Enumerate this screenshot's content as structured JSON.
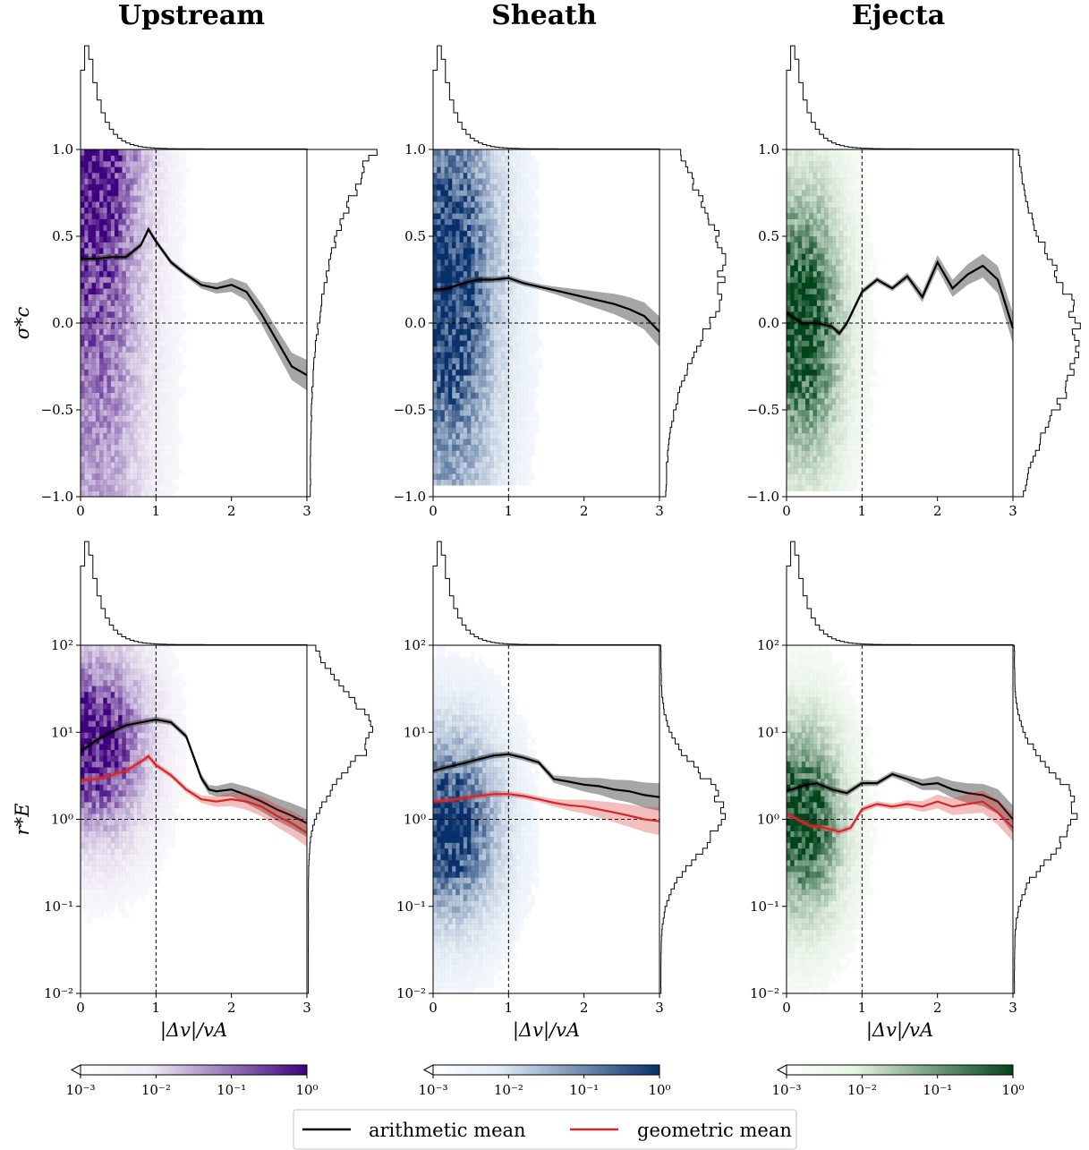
{
  "figure": {
    "columns": [
      "Upstream",
      "Sheath",
      "Ejecta"
    ],
    "colormaps": {
      "Upstream": {
        "light": "#efedf5",
        "dark": "#3f007d"
      },
      "Sheath": {
        "light": "#deebf7",
        "dark": "#08306b"
      },
      "Ejecta": {
        "light": "#e5f5e0",
        "dark": "#00441b"
      }
    },
    "rows": [
      {
        "id": "sigma",
        "ylabel": "σ*c"
      },
      {
        "id": "rE",
        "ylabel": "r*E"
      }
    ],
    "xlabel": "|Δv|/vA",
    "colorbar_ticks": [
      "10⁻³",
      "10⁻²",
      "10⁻¹",
      "10⁰"
    ],
    "legend": [
      {
        "label": "arithmetic mean",
        "color": "#000000"
      },
      {
        "label": "geometric mean",
        "color": "#d62728"
      }
    ]
  },
  "chart_data": [
    {
      "type": "heatmap",
      "panel": "Upstream",
      "ylabel": "σ*c",
      "xlabel": "",
      "xlim": [
        0,
        3
      ],
      "ylim": [
        -1,
        1
      ],
      "xticks": [
        "0",
        "1",
        "2",
        "3"
      ],
      "yticks": [
        "−1.0",
        "−0.5",
        "0.0",
        "0.5",
        "1.0"
      ],
      "reference_lines": {
        "x": 1,
        "y": 0
      },
      "series": [
        {
          "name": "arithmetic mean",
          "x": [
            0,
            0.2,
            0.4,
            0.6,
            0.8,
            0.9,
            1.0,
            1.2,
            1.4,
            1.6,
            1.8,
            2.0,
            2.2,
            2.4,
            2.6,
            2.8,
            3.0
          ],
          "values": [
            0.37,
            0.37,
            0.38,
            0.38,
            0.45,
            0.54,
            0.47,
            0.35,
            0.28,
            0.22,
            0.2,
            0.22,
            0.18,
            0.05,
            -0.1,
            -0.25,
            -0.3
          ]
        }
      ]
    },
    {
      "type": "heatmap",
      "panel": "Sheath",
      "ylabel": "",
      "xlabel": "",
      "xlim": [
        0,
        3
      ],
      "ylim": [
        -1,
        1
      ],
      "xticks": [
        "0",
        "1",
        "2",
        "3"
      ],
      "yticks": [
        "−1.0",
        "−0.5",
        "0.0",
        "0.5",
        "1.0"
      ],
      "reference_lines": {
        "x": 1,
        "y": 0
      },
      "series": [
        {
          "name": "arithmetic mean",
          "x": [
            0,
            0.2,
            0.4,
            0.6,
            0.8,
            1.0,
            1.2,
            1.4,
            1.6,
            1.8,
            2.0,
            2.2,
            2.4,
            2.6,
            2.8,
            3.0
          ],
          "values": [
            0.19,
            0.2,
            0.23,
            0.25,
            0.25,
            0.26,
            0.23,
            0.21,
            0.19,
            0.17,
            0.15,
            0.13,
            0.11,
            0.08,
            0.04,
            -0.05
          ]
        }
      ]
    },
    {
      "type": "heatmap",
      "panel": "Ejecta",
      "ylabel": "",
      "xlabel": "",
      "xlim": [
        0,
        3
      ],
      "ylim": [
        -1,
        1
      ],
      "xticks": [
        "0",
        "1",
        "2",
        "3"
      ],
      "yticks": [
        "−1.0",
        "−0.5",
        "0.0",
        "0.5",
        "1.0"
      ],
      "reference_lines": {
        "x": 1,
        "y": 0
      },
      "series": [
        {
          "name": "arithmetic mean",
          "x": [
            0,
            0.2,
            0.4,
            0.6,
            0.7,
            0.8,
            1.0,
            1.2,
            1.4,
            1.6,
            1.8,
            2.0,
            2.2,
            2.4,
            2.6,
            2.8,
            3.0
          ],
          "values": [
            0.06,
            0.0,
            0.0,
            -0.02,
            -0.06,
            0.0,
            0.18,
            0.25,
            0.2,
            0.27,
            0.15,
            0.35,
            0.2,
            0.28,
            0.33,
            0.25,
            -0.03
          ]
        }
      ]
    },
    {
      "type": "heatmap",
      "panel": "Upstream",
      "ylabel": "r*E",
      "xlabel": "|Δv|/vA",
      "xlim": [
        0,
        3
      ],
      "ylim": [
        0.01,
        100
      ],
      "yscale": "log",
      "xticks": [
        "0",
        "1",
        "2",
        "3"
      ],
      "yticks": [
        "10⁻²",
        "10⁻¹",
        "10⁰",
        "10¹",
        "10²"
      ],
      "reference_lines": {
        "x": 1,
        "y": 1
      },
      "series": [
        {
          "name": "arithmetic mean",
          "x": [
            0,
            0.2,
            0.4,
            0.6,
            0.8,
            1.0,
            1.2,
            1.4,
            1.6,
            1.7,
            1.8,
            2.0,
            2.2,
            2.4,
            2.6,
            2.8,
            3.0
          ],
          "values": [
            6.0,
            8.0,
            10.0,
            12.0,
            13.0,
            14.0,
            13.0,
            9.0,
            3.0,
            2.2,
            2.1,
            2.2,
            1.9,
            1.6,
            1.3,
            1.1,
            0.9
          ]
        },
        {
          "name": "geometric mean",
          "x": [
            0,
            0.2,
            0.4,
            0.6,
            0.8,
            0.9,
            1.0,
            1.2,
            1.4,
            1.6,
            1.8,
            2.0,
            2.2,
            2.4,
            2.6,
            2.8,
            3.0
          ],
          "values": [
            2.8,
            2.9,
            3.2,
            3.6,
            4.6,
            5.3,
            4.2,
            3.2,
            2.2,
            1.7,
            1.6,
            1.7,
            1.6,
            1.4,
            1.1,
            0.9,
            0.7
          ]
        }
      ]
    },
    {
      "type": "heatmap",
      "panel": "Sheath",
      "ylabel": "",
      "xlabel": "|Δv|/vA",
      "xlim": [
        0,
        3
      ],
      "ylim": [
        0.01,
        100
      ],
      "yscale": "log",
      "xticks": [
        "0",
        "1",
        "2",
        "3"
      ],
      "yticks": [
        "10⁻²",
        "10⁻¹",
        "10⁰",
        "10¹",
        "10²"
      ],
      "reference_lines": {
        "x": 1,
        "y": 1
      },
      "series": [
        {
          "name": "arithmetic mean",
          "x": [
            0,
            0.2,
            0.4,
            0.6,
            0.8,
            1.0,
            1.2,
            1.4,
            1.6,
            1.8,
            2.0,
            2.2,
            2.4,
            2.6,
            2.8,
            3.0
          ],
          "values": [
            3.6,
            4.0,
            4.4,
            4.9,
            5.4,
            5.6,
            5.1,
            4.5,
            2.9,
            2.7,
            2.5,
            2.4,
            2.2,
            2.1,
            1.9,
            1.8
          ]
        },
        {
          "name": "geometric mean",
          "x": [
            0,
            0.2,
            0.4,
            0.6,
            0.8,
            1.0,
            1.2,
            1.4,
            1.6,
            1.8,
            2.0,
            2.2,
            2.4,
            2.6,
            2.8,
            3.0
          ],
          "values": [
            1.6,
            1.65,
            1.75,
            1.85,
            1.95,
            1.95,
            1.85,
            1.7,
            1.55,
            1.45,
            1.4,
            1.3,
            1.2,
            1.1,
            1.0,
            0.95
          ]
        }
      ]
    },
    {
      "type": "heatmap",
      "panel": "Ejecta",
      "ylabel": "",
      "xlabel": "|Δv|/vA",
      "xlim": [
        0,
        3
      ],
      "ylim": [
        0.01,
        100
      ],
      "yscale": "log",
      "xticks": [
        "0",
        "1",
        "2",
        "3"
      ],
      "yticks": [
        "10⁻²",
        "10⁻¹",
        "10⁰",
        "10¹",
        "10²"
      ],
      "reference_lines": {
        "x": 1,
        "y": 1
      },
      "series": [
        {
          "name": "arithmetic mean",
          "x": [
            0,
            0.2,
            0.4,
            0.6,
            0.8,
            1.0,
            1.2,
            1.4,
            1.6,
            1.8,
            2.0,
            2.2,
            2.4,
            2.6,
            2.8,
            3.0
          ],
          "values": [
            2.1,
            2.4,
            2.6,
            2.2,
            2.0,
            2.6,
            2.6,
            3.3,
            2.9,
            2.5,
            2.6,
            2.2,
            2.0,
            1.9,
            1.6,
            1.0
          ]
        },
        {
          "name": "geometric mean",
          "x": [
            0,
            0.2,
            0.3,
            0.5,
            0.7,
            0.85,
            1.0,
            1.2,
            1.4,
            1.6,
            1.8,
            2.0,
            2.2,
            2.4,
            2.6,
            2.8,
            3.0
          ],
          "values": [
            1.15,
            0.95,
            0.85,
            0.8,
            0.72,
            0.8,
            1.3,
            1.5,
            1.4,
            1.5,
            1.4,
            1.6,
            1.4,
            1.5,
            1.6,
            1.2,
            0.8
          ]
        }
      ]
    }
  ]
}
